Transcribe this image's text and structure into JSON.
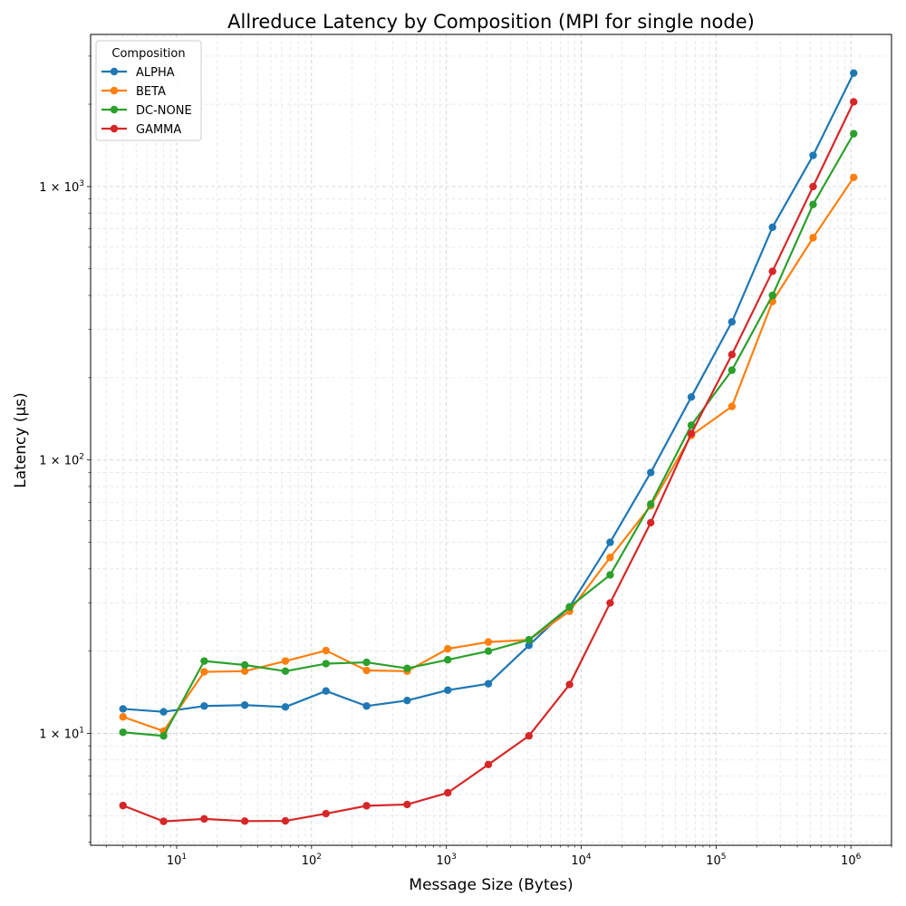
{
  "chart_data": {
    "type": "line",
    "title": "Allreduce Latency by Composition (MPI for single node)",
    "xlabel": "Message Size (Bytes)",
    "ylabel": "Latency (µs)",
    "xscale": "log",
    "yscale": "log",
    "xlim": [
      2.3,
      2000000
    ],
    "ylim": [
      3.9,
      3600
    ],
    "grid": true,
    "x_ticks": [
      {
        "base": "10",
        "exp": "1"
      },
      {
        "base": "10",
        "exp": "2"
      },
      {
        "base": "10",
        "exp": "3"
      },
      {
        "base": "10",
        "exp": "4"
      },
      {
        "base": "10",
        "exp": "5"
      },
      {
        "base": "10",
        "exp": "6"
      }
    ],
    "y_ticks": [
      {
        "base": "1 × 10",
        "exp": "1"
      },
      {
        "base": "1 × 10",
        "exp": "2"
      },
      {
        "base": "1 × 10",
        "exp": "3"
      }
    ],
    "legend": {
      "title": "Composition",
      "position": "top-left"
    },
    "x": [
      4,
      8,
      16,
      32,
      64,
      128,
      256,
      512,
      1024,
      2048,
      4096,
      8192,
      16384,
      32768,
      65536,
      131072,
      262144,
      524288,
      1048576
    ],
    "series": [
      {
        "name": "ALPHA",
        "color": "#1f77b4",
        "values": [
          12.3,
          12.0,
          12.6,
          12.7,
          12.5,
          14.3,
          12.6,
          13.2,
          14.4,
          15.2,
          21.0,
          29.0,
          50.0,
          90.0,
          170.0,
          320.0,
          710.0,
          1300.0,
          2600.0
        ]
      },
      {
        "name": "BETA",
        "color": "#ff7f0e",
        "values": [
          11.5,
          10.2,
          16.8,
          16.9,
          18.4,
          20.1,
          17.0,
          16.9,
          20.4,
          21.6,
          22.0,
          28.0,
          44.0,
          68.0,
          123.0,
          157.0,
          380.0,
          650.0,
          1080.0
        ]
      },
      {
        "name": "DC-NONE",
        "color": "#2ca02c",
        "values": [
          10.1,
          9.8,
          18.4,
          17.8,
          16.9,
          18.0,
          18.2,
          17.3,
          18.6,
          20.0,
          22.0,
          29.0,
          38.0,
          69.0,
          134.0,
          213.0,
          400.0,
          860.0,
          1560.0
        ]
      },
      {
        "name": "GAMMA",
        "color": "#d62728",
        "values": [
          5.45,
          4.77,
          4.87,
          4.78,
          4.79,
          5.09,
          5.44,
          5.5,
          6.07,
          7.7,
          9.8,
          15.1,
          30.0,
          59.0,
          125.0,
          243.0,
          490.0,
          1000.0,
          2040.0
        ]
      }
    ]
  }
}
